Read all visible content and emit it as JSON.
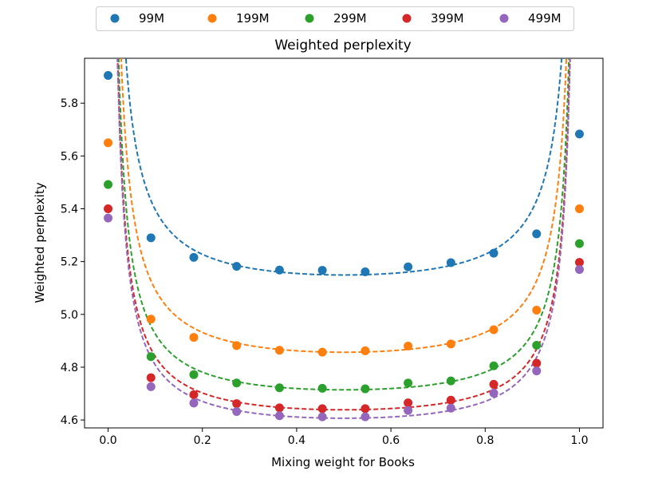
{
  "chart_data": {
    "type": "scatter",
    "title": "Weighted perplexity",
    "xlabel": "Mixing weight for Books",
    "ylabel": "Weighted perplexity",
    "xlim": [
      -0.05,
      1.05
    ],
    "ylim": [
      4.57,
      5.97
    ],
    "xticks": [
      0.0,
      0.2,
      0.4,
      0.6,
      0.8,
      1.0
    ],
    "xtick_labels": [
      "0.0",
      "0.2",
      "0.4",
      "0.6",
      "0.8",
      "1.0"
    ],
    "yticks": [
      4.6,
      4.8,
      5.0,
      5.2,
      5.4,
      5.6,
      5.8
    ],
    "ytick_labels": [
      "4.6",
      "4.8",
      "5.0",
      "5.2",
      "5.4",
      "5.6",
      "5.8"
    ],
    "grid": false,
    "legend_position": "top-center",
    "x": [
      0.0,
      0.0909,
      0.1818,
      0.2727,
      0.3636,
      0.4545,
      0.5455,
      0.6364,
      0.7273,
      0.8182,
      0.9091,
      1.0
    ],
    "series": [
      {
        "name": "99M",
        "color": "#1f77b4",
        "values": [
          5.905,
          5.29,
          5.216,
          5.182,
          5.168,
          5.167,
          5.161,
          5.18,
          5.196,
          5.232,
          5.305,
          5.683
        ],
        "fit": {
          "a": 5.01,
          "c": 0.0348
        }
      },
      {
        "name": "199M",
        "color": "#ff7f0e",
        "values": [
          5.65,
          4.982,
          4.913,
          4.882,
          4.864,
          4.857,
          4.862,
          4.88,
          4.888,
          4.942,
          5.016,
          5.4
        ],
        "fit": {
          "a": 4.723,
          "c": 0.0334
        }
      },
      {
        "name": "299M",
        "color": "#2ca02c",
        "values": [
          5.492,
          4.84,
          4.772,
          4.74,
          4.722,
          4.72,
          4.718,
          4.74,
          4.748,
          4.805,
          4.883,
          5.268
        ],
        "fit": {
          "a": 4.595,
          "c": 0.0298
        }
      },
      {
        "name": "399M",
        "color": "#d62728",
        "values": [
          5.4,
          4.76,
          4.696,
          4.662,
          4.646,
          4.643,
          4.643,
          4.665,
          4.675,
          4.735,
          4.815,
          5.197
        ],
        "fit": {
          "a": 4.525,
          "c": 0.0284
        }
      },
      {
        "name": "499M",
        "color": "#9467bd",
        "values": [
          5.365,
          4.726,
          4.664,
          4.632,
          4.616,
          4.612,
          4.612,
          4.636,
          4.645,
          4.702,
          4.786,
          5.17
        ],
        "fit": {
          "a": 4.493,
          "c": 0.0284
        }
      }
    ]
  }
}
